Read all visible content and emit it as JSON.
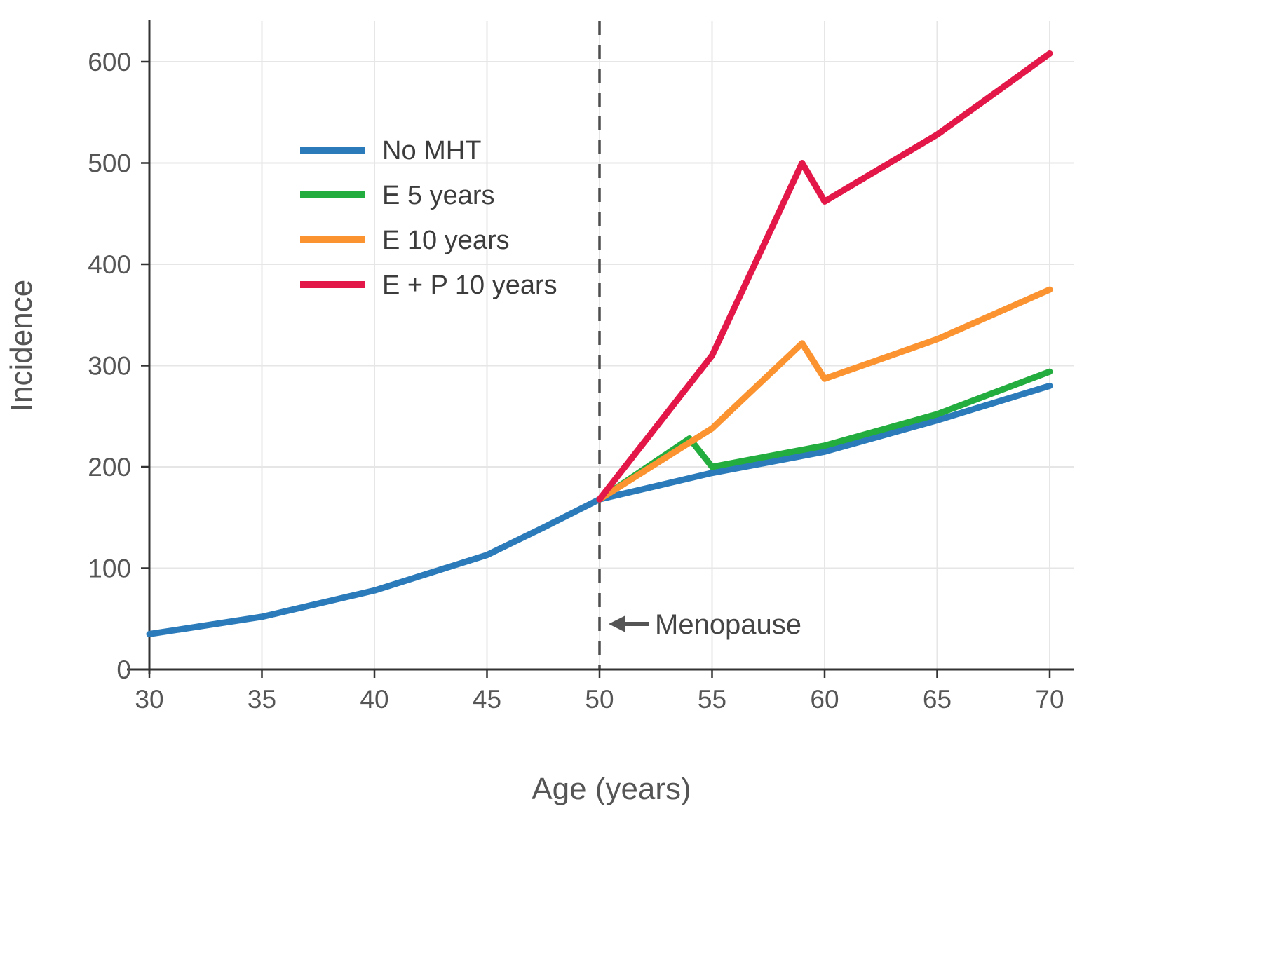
{
  "chart_data": {
    "type": "line",
    "title": "",
    "xlabel": "Age (years)",
    "ylabel": "Incidence",
    "x_ticks": [
      30,
      35,
      40,
      45,
      50,
      55,
      60,
      65,
      70
    ],
    "y_ticks": [
      0,
      100,
      200,
      300,
      400,
      500,
      600
    ],
    "xlim": [
      30,
      71.1
    ],
    "ylim": [
      0,
      640
    ],
    "grid": true,
    "legend_position": "upper-left",
    "series": [
      {
        "name": "No MHT",
        "color": "#2b7bba",
        "x": [
          30,
          35,
          40,
          45,
          47.5,
          50,
          52.5,
          55,
          60,
          65,
          70
        ],
        "y": [
          35,
          52,
          78,
          113,
          140,
          168,
          181,
          194,
          215,
          246,
          280
        ]
      },
      {
        "name": "E 5 years",
        "color": "#23ad3f",
        "x": [
          50,
          54,
          55,
          60,
          65,
          70
        ],
        "y": [
          168,
          228,
          200,
          221,
          252,
          294
        ]
      },
      {
        "name": "E 10 years",
        "color": "#fb9331",
        "x": [
          50,
          55,
          59,
          60,
          65,
          70
        ],
        "y": [
          168,
          238,
          322,
          287,
          326,
          375
        ]
      },
      {
        "name": "E + P 10 years",
        "color": "#e31748",
        "x": [
          50,
          55,
          59,
          60,
          65,
          70
        ],
        "y": [
          168,
          310,
          500,
          462,
          528,
          608
        ]
      }
    ],
    "vline": {
      "x": 50,
      "style": "dashed",
      "color": "#4d4d4d"
    },
    "annotation": {
      "text": "Menopause",
      "x": 50,
      "y": 45,
      "arrow": "left",
      "color": "#555555"
    },
    "colors": {
      "grid": "#e6e6e6",
      "axis": "#333333",
      "background": "#ffffff"
    }
  }
}
